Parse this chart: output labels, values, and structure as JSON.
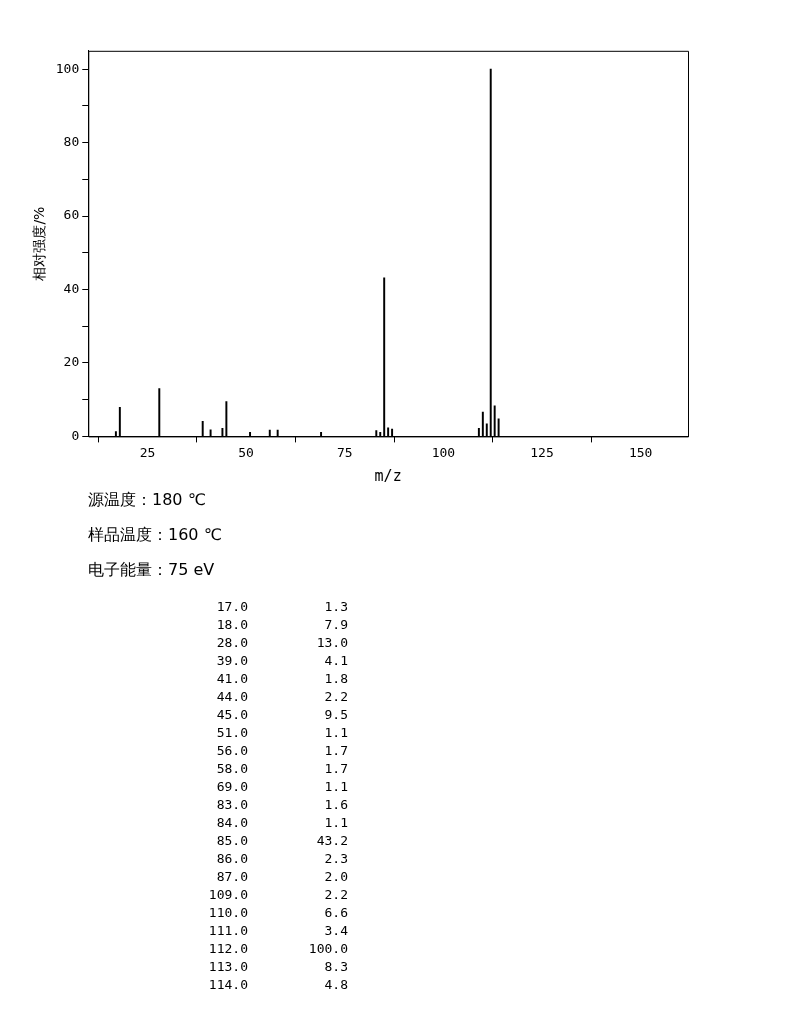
{
  "chart_data": [
    {
      "type": "bar",
      "xlabel": "m/z",
      "ylabel": "相对强度/%",
      "x": [
        17,
        18,
        28,
        39,
        41,
        44,
        45,
        51,
        56,
        58,
        69,
        83,
        84,
        85,
        86,
        87,
        109,
        110,
        111,
        112,
        113,
        114
      ],
      "values": [
        1.3,
        7.9,
        13.0,
        4.1,
        1.8,
        2.2,
        9.5,
        1.1,
        1.7,
        1.7,
        1.1,
        1.6,
        1.1,
        43.2,
        2.3,
        2.0,
        2.2,
        6.6,
        3.4,
        100.0,
        8.3,
        4.8
      ],
      "color": "#000000",
      "xlim": [
        10,
        162
      ],
      "xticks": [
        25,
        50,
        75,
        100,
        125,
        150
      ],
      "ylim": [
        0,
        105
      ],
      "yticks": [
        0,
        {
          "value": 10,
          "label": null
        },
        20,
        {
          "value": 30,
          "label": null
        },
        40,
        {
          "value": 50,
          "label": null
        },
        60,
        {
          "value": 70,
          "label": null
        },
        80,
        {
          "value": 90,
          "label": null
        },
        100
      ],
      "legend": false,
      "annotations": [
        "源温度：180 ℃",
        "样品温度：160 ℃",
        "电子能量：75 eV"
      ]
    },
    {
      "type": "other",
      "categories": [
        "17.0",
        "18.0",
        "28.0",
        "39.0",
        "41.0",
        "44.0",
        "45.0",
        "51.0",
        "56.0",
        "58.0",
        "69.0",
        "83.0",
        "84.0",
        "85.0",
        "86.0",
        "87.0",
        "109.0",
        "110.0",
        "111.0",
        "112.0",
        "113.0",
        "114.0"
      ],
      "value_labels": [
        "1.3",
        "7.9",
        "13.0",
        "4.1",
        "1.8",
        "2.2",
        "9.5",
        "1.1",
        "1.7",
        "1.7",
        "1.1",
        "1.6",
        "1.1",
        "43.2",
        "2.3",
        "2.0",
        "2.2",
        "6.6",
        "3.4",
        "100.0",
        "8.3",
        "4.8"
      ]
    }
  ]
}
